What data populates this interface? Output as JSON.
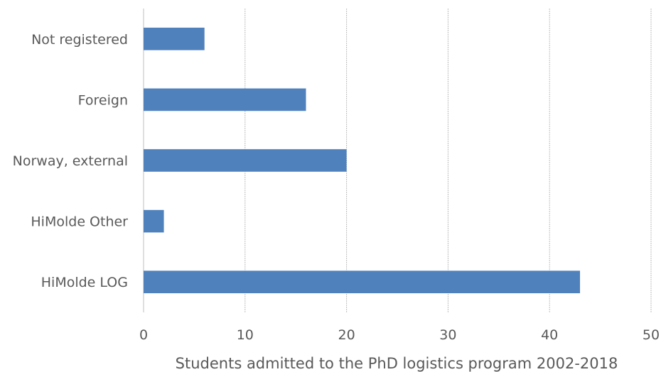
{
  "chart_data": {
    "type": "bar",
    "orientation": "horizontal",
    "categories": [
      "Not registered",
      "Foreign",
      "Norway, external",
      "HiMolde Other",
      "HiMolde LOG"
    ],
    "values": [
      6,
      16,
      20,
      2,
      43
    ],
    "title": "",
    "xlabel": "Students admitted to the PhD logistics program 2002-2018",
    "ylabel": "",
    "xlim": [
      0,
      50
    ],
    "xticks": [
      "0",
      "10",
      "20",
      "30",
      "40",
      "50"
    ],
    "grid": "vertical",
    "legend": "none",
    "bar_color": "#4f81bd"
  }
}
